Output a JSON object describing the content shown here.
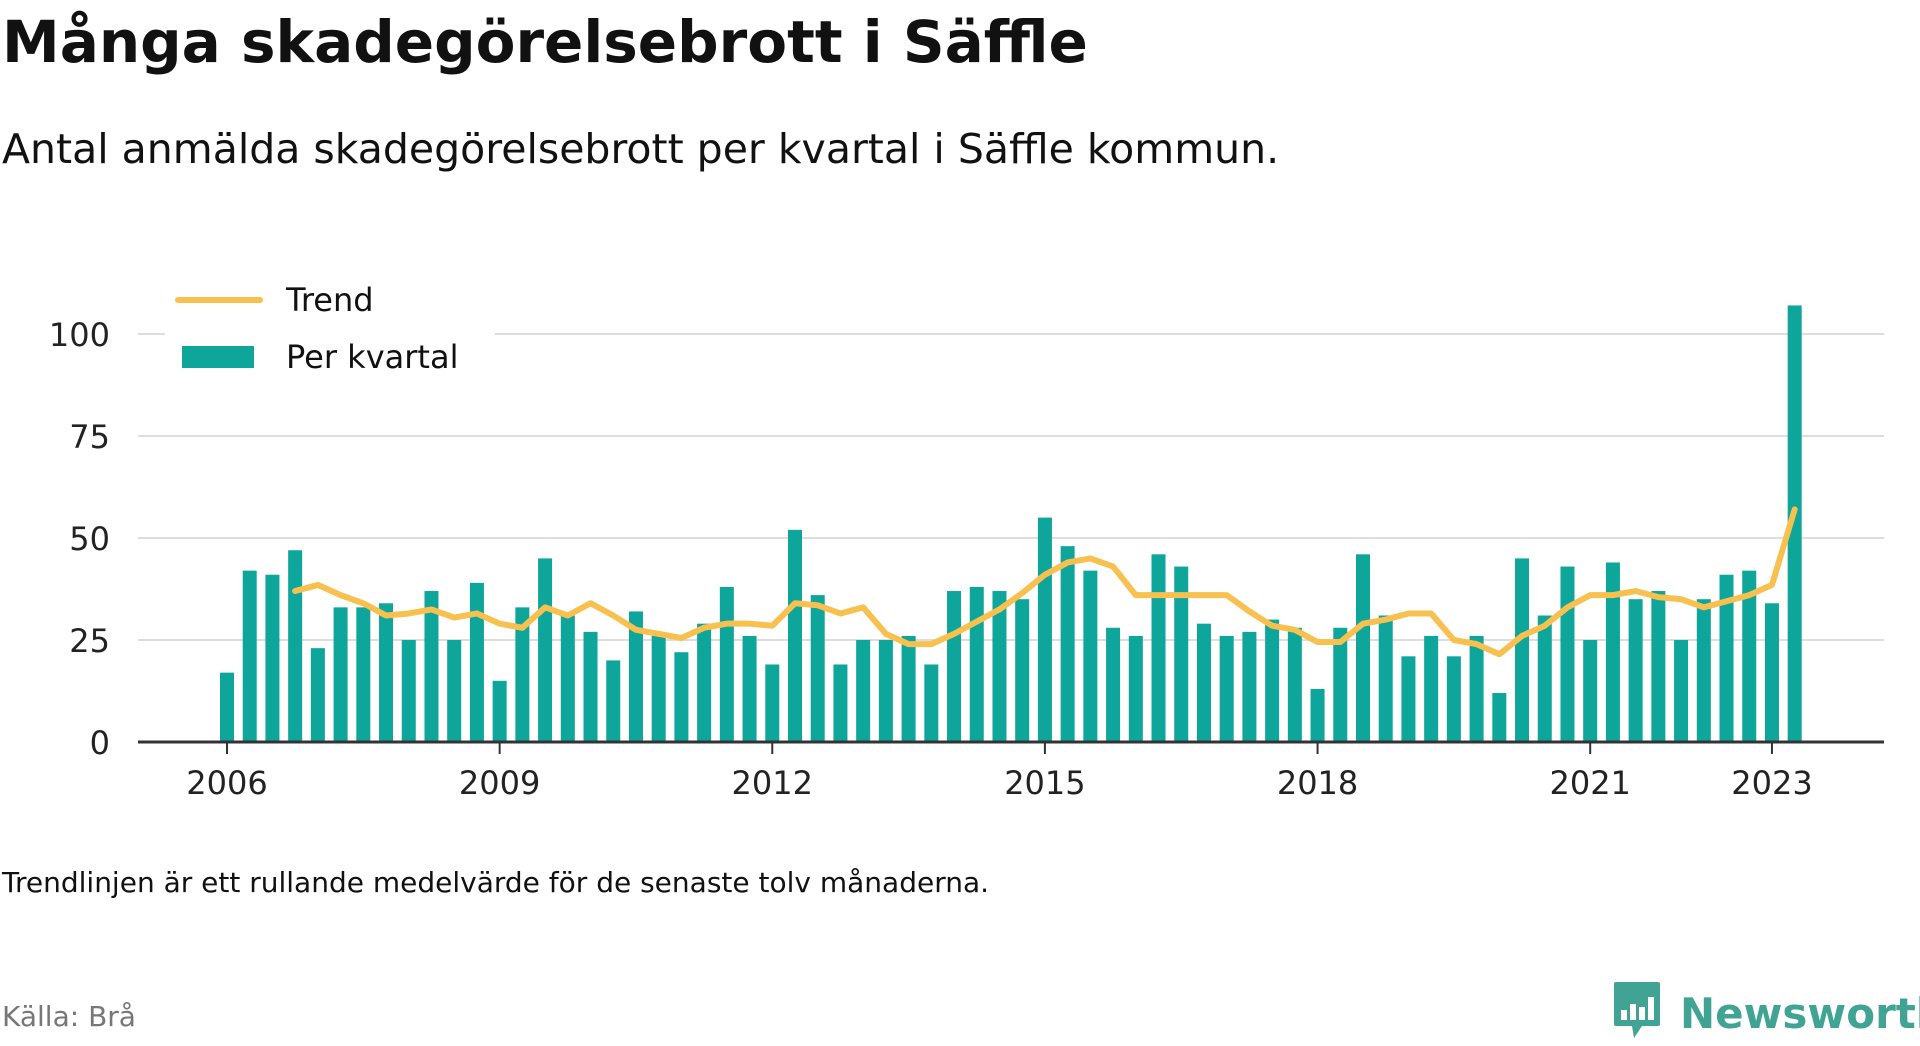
{
  "title": "Många skadegörelsebrott i Säffle",
  "subtitle": "Antal anmälda skadegörelsebrott per kvartal i Säffle kommun.",
  "note": "Trendlinjen är ett rullande medelvärde för de senaste tolv månaderna.",
  "source": "Källa: Brå",
  "brand": {
    "name": "Newsworthy",
    "icon": "newsworthy-logo-icon"
  },
  "colors": {
    "bars": "#0ea59b",
    "trend": "#f7c04f",
    "grid": "#dddddd",
    "axis": "#333333",
    "brand": "#41a394"
  },
  "chart_data": {
    "type": "bar",
    "x_ticks": [
      "2006",
      "2009",
      "2012",
      "2015",
      "2018",
      "2021",
      "2023"
    ],
    "ylim": [
      0,
      110
    ],
    "y_ticks": [
      0,
      25,
      50,
      75,
      100
    ],
    "grid": true,
    "legend_position": "top-left",
    "series": [
      {
        "name": "Per kvartal",
        "kind": "bar",
        "color": "#0ea59b",
        "points": [
          {
            "q": "2006 K1",
            "v": 17
          },
          {
            "q": "2006 K2",
            "v": 42
          },
          {
            "q": "2006 K3",
            "v": 41
          },
          {
            "q": "2006 K4",
            "v": 47
          },
          {
            "q": "2007 K1",
            "v": 23
          },
          {
            "q": "2007 K2",
            "v": 33
          },
          {
            "q": "2007 K3",
            "v": 33
          },
          {
            "q": "2007 K4",
            "v": 34
          },
          {
            "q": "2008 K1",
            "v": 25
          },
          {
            "q": "2008 K2",
            "v": 37
          },
          {
            "q": "2008 K3",
            "v": 25
          },
          {
            "q": "2008 K4",
            "v": 39
          },
          {
            "q": "2009 K1",
            "v": 15
          },
          {
            "q": "2009 K2",
            "v": 33
          },
          {
            "q": "2009 K3",
            "v": 45
          },
          {
            "q": "2009 K4",
            "v": 31
          },
          {
            "q": "2010 K1",
            "v": 27
          },
          {
            "q": "2010 K2",
            "v": 20
          },
          {
            "q": "2010 K3",
            "v": 32
          },
          {
            "q": "2010 K4",
            "v": 26
          },
          {
            "q": "2011 K1",
            "v": 22
          },
          {
            "q": "2011 K2",
            "v": 29
          },
          {
            "q": "2011 K3",
            "v": 38
          },
          {
            "q": "2011 K4",
            "v": 26
          },
          {
            "q": "2012 K1",
            "v": 19
          },
          {
            "q": "2012 K2",
            "v": 52
          },
          {
            "q": "2012 K3",
            "v": 36
          },
          {
            "q": "2012 K4",
            "v": 19
          },
          {
            "q": "2013 K1",
            "v": 25
          },
          {
            "q": "2013 K2",
            "v": 25
          },
          {
            "q": "2013 K3",
            "v": 26
          },
          {
            "q": "2013 K4",
            "v": 19
          },
          {
            "q": "2014 K1",
            "v": 37
          },
          {
            "q": "2014 K2",
            "v": 38
          },
          {
            "q": "2014 K3",
            "v": 37
          },
          {
            "q": "2014 K4",
            "v": 35
          },
          {
            "q": "2015 K1",
            "v": 55
          },
          {
            "q": "2015 K2",
            "v": 48
          },
          {
            "q": "2015 K3",
            "v": 42
          },
          {
            "q": "2015 K4",
            "v": 28
          },
          {
            "q": "2016 K1",
            "v": 26
          },
          {
            "q": "2016 K2",
            "v": 46
          },
          {
            "q": "2016 K3",
            "v": 43
          },
          {
            "q": "2016 K4",
            "v": 29
          },
          {
            "q": "2017 K1",
            "v": 26
          },
          {
            "q": "2017 K2",
            "v": 27
          },
          {
            "q": "2017 K3",
            "v": 30
          },
          {
            "q": "2017 K4",
            "v": 28
          },
          {
            "q": "2018 K1",
            "v": 13
          },
          {
            "q": "2018 K2",
            "v": 28
          },
          {
            "q": "2018 K3",
            "v": 46
          },
          {
            "q": "2018 K4",
            "v": 31
          },
          {
            "q": "2019 K1",
            "v": 21
          },
          {
            "q": "2019 K2",
            "v": 26
          },
          {
            "q": "2019 K3",
            "v": 21
          },
          {
            "q": "2019 K4",
            "v": 26
          },
          {
            "q": "2020 K1",
            "v": 12
          },
          {
            "q": "2020 K2",
            "v": 45
          },
          {
            "q": "2020 K3",
            "v": 31
          },
          {
            "q": "2020 K4",
            "v": 43
          },
          {
            "q": "2021 K1",
            "v": 25
          },
          {
            "q": "2021 K2",
            "v": 44
          },
          {
            "q": "2021 K3",
            "v": 35
          },
          {
            "q": "2021 K4",
            "v": 37
          },
          {
            "q": "2022 K1",
            "v": 25
          },
          {
            "q": "2022 K2",
            "v": 35
          },
          {
            "q": "2022 K3",
            "v": 41
          },
          {
            "q": "2022 K4",
            "v": 42
          },
          {
            "q": "2023 K1",
            "v": 34
          },
          {
            "q": "2023 K2",
            "v": 107
          }
        ]
      },
      {
        "name": "Trend",
        "kind": "line",
        "color": "#f7c04f",
        "points": [
          {
            "q": "2006 K4",
            "v": 37
          },
          {
            "q": "2007 K1",
            "v": 38.5
          },
          {
            "q": "2007 K2",
            "v": 36
          },
          {
            "q": "2007 K3",
            "v": 34
          },
          {
            "q": "2007 K4",
            "v": 31
          },
          {
            "q": "2008 K1",
            "v": 31.5
          },
          {
            "q": "2008 K2",
            "v": 32.5
          },
          {
            "q": "2008 K3",
            "v": 30.5
          },
          {
            "q": "2008 K4",
            "v": 31.5
          },
          {
            "q": "2009 K1",
            "v": 29
          },
          {
            "q": "2009 K2",
            "v": 28
          },
          {
            "q": "2009 K3",
            "v": 33
          },
          {
            "q": "2009 K4",
            "v": 31
          },
          {
            "q": "2010 K1",
            "v": 34
          },
          {
            "q": "2010 K2",
            "v": 31
          },
          {
            "q": "2010 K3",
            "v": 27.5
          },
          {
            "q": "2010 K4",
            "v": 26.5
          },
          {
            "q": "2011 K1",
            "v": 25.5
          },
          {
            "q": "2011 K2",
            "v": 28
          },
          {
            "q": "2011 K3",
            "v": 29
          },
          {
            "q": "2011 K4",
            "v": 29
          },
          {
            "q": "2012 K1",
            "v": 28.5
          },
          {
            "q": "2012 K2",
            "v": 34
          },
          {
            "q": "2012 K3",
            "v": 33.5
          },
          {
            "q": "2012 K4",
            "v": 31.5
          },
          {
            "q": "2013 K1",
            "v": 33
          },
          {
            "q": "2013 K2",
            "v": 26.5
          },
          {
            "q": "2013 K3",
            "v": 24
          },
          {
            "q": "2013 K4",
            "v": 24
          },
          {
            "q": "2014 K1",
            "v": 26.5
          },
          {
            "q": "2014 K2",
            "v": 29.5
          },
          {
            "q": "2014 K3",
            "v": 32.5
          },
          {
            "q": "2014 K4",
            "v": 36.5
          },
          {
            "q": "2015 K1",
            "v": 41
          },
          {
            "q": "2015 K2",
            "v": 44
          },
          {
            "q": "2015 K3",
            "v": 45
          },
          {
            "q": "2015 K4",
            "v": 43
          },
          {
            "q": "2016 K1",
            "v": 36
          },
          {
            "q": "2016 K2",
            "v": 36
          },
          {
            "q": "2016 K3",
            "v": 36
          },
          {
            "q": "2016 K4",
            "v": 36
          },
          {
            "q": "2017 K1",
            "v": 36
          },
          {
            "q": "2017 K2",
            "v": 32
          },
          {
            "q": "2017 K3",
            "v": 28.5
          },
          {
            "q": "2017 K4",
            "v": 27.5
          },
          {
            "q": "2018 K1",
            "v": 24.5
          },
          {
            "q": "2018 K2",
            "v": 24.5
          },
          {
            "q": "2018 K3",
            "v": 29
          },
          {
            "q": "2018 K4",
            "v": 30
          },
          {
            "q": "2019 K1",
            "v": 31.5
          },
          {
            "q": "2019 K2",
            "v": 31.5
          },
          {
            "q": "2019 K3",
            "v": 25
          },
          {
            "q": "2019 K4",
            "v": 24
          },
          {
            "q": "2020 K1",
            "v": 21.5
          },
          {
            "q": "2020 K2",
            "v": 26
          },
          {
            "q": "2020 K3",
            "v": 28.5
          },
          {
            "q": "2020 K4",
            "v": 33
          },
          {
            "q": "2021 K1",
            "v": 36
          },
          {
            "q": "2021 K2",
            "v": 36
          },
          {
            "q": "2021 K3",
            "v": 37
          },
          {
            "q": "2021 K4",
            "v": 35.5
          },
          {
            "q": "2022 K1",
            "v": 35
          },
          {
            "q": "2022 K2",
            "v": 33
          },
          {
            "q": "2022 K3",
            "v": 34.5
          },
          {
            "q": "2022 K4",
            "v": 36
          },
          {
            "q": "2023 K1",
            "v": 38.5
          },
          {
            "q": "2023 K2",
            "v": 57
          }
        ]
      }
    ]
  }
}
